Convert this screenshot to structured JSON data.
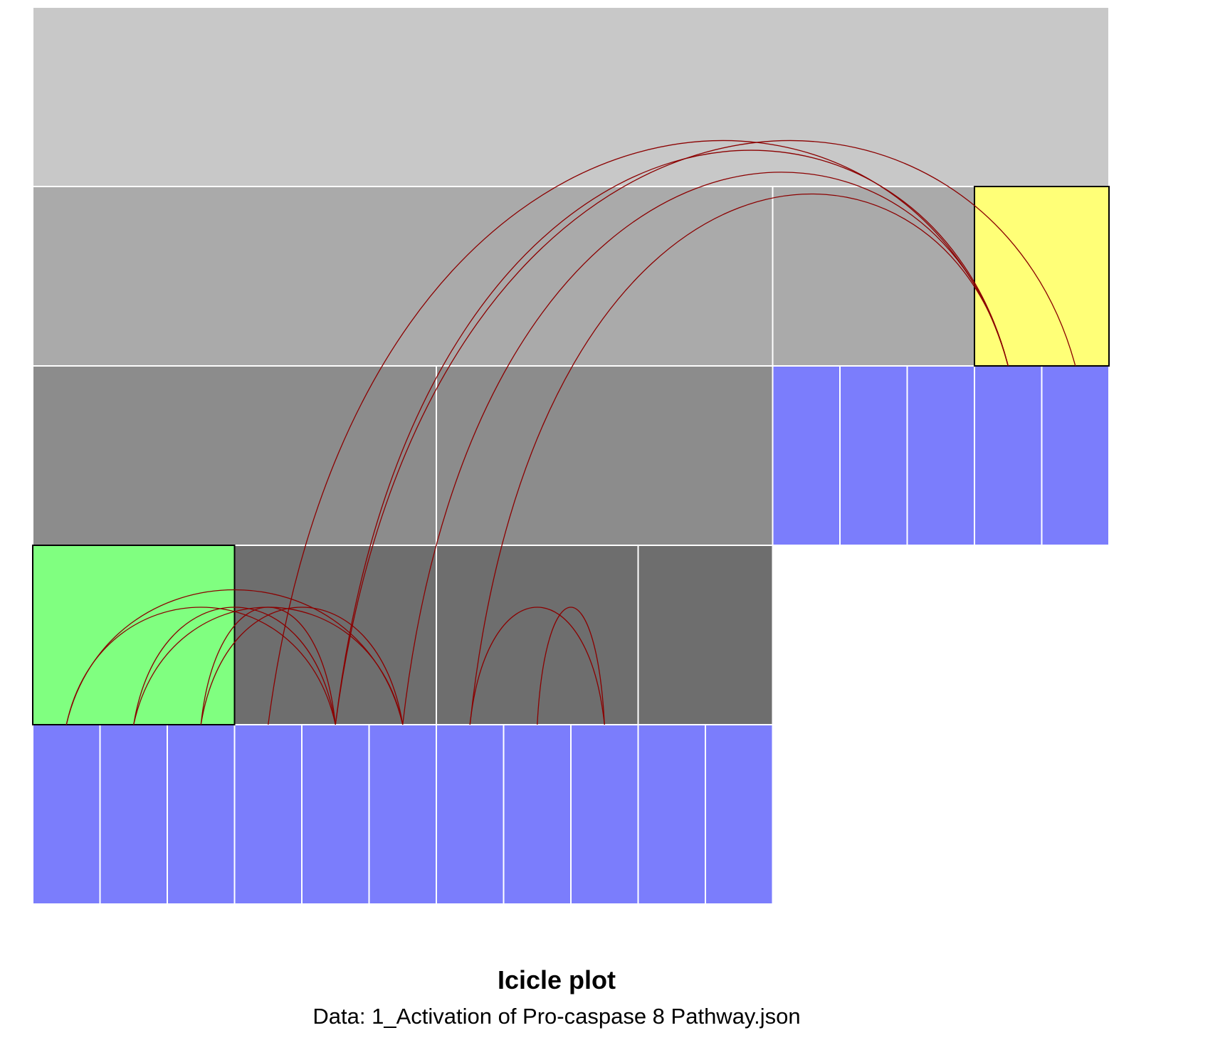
{
  "title": "Icicle plot",
  "subtitle": "Data: 1_Activation of Pro-caspase 8 Pathway.json",
  "colors": {
    "level0": "#c8c8c8",
    "level1": "#aaaaaa",
    "level2": "#8c8c8c",
    "level3": "#6e6e6e",
    "leaf": "#7b7dfc",
    "highlight_source": "#80ff80",
    "highlight_target": "#ffff77",
    "node_border": "#ffffff",
    "highlight_border": "#000000",
    "link": "#8b0000"
  },
  "chart_data": {
    "type": "icicle",
    "unit_count": 16,
    "depth_count": 5,
    "nodes": [
      {
        "id": "root",
        "depth": 0,
        "start": 0,
        "span": 16,
        "fill": "level0"
      },
      {
        "id": "A",
        "depth": 1,
        "start": 0,
        "span": 11,
        "fill": "level1"
      },
      {
        "id": "B",
        "depth": 1,
        "start": 11,
        "span": 3,
        "fill": "level1"
      },
      {
        "id": "C",
        "depth": 1,
        "start": 14,
        "span": 2,
        "fill": "highlight_target",
        "highlighted": true
      },
      {
        "id": "A1",
        "depth": 2,
        "start": 0,
        "span": 6,
        "fill": "level2"
      },
      {
        "id": "A2",
        "depth": 2,
        "start": 6,
        "span": 5,
        "fill": "level2"
      },
      {
        "id": "b1",
        "depth": 2,
        "start": 11,
        "span": 1,
        "fill": "leaf"
      },
      {
        "id": "b2",
        "depth": 2,
        "start": 12,
        "span": 1,
        "fill": "leaf"
      },
      {
        "id": "b3",
        "depth": 2,
        "start": 13,
        "span": 1,
        "fill": "leaf"
      },
      {
        "id": "c1",
        "depth": 2,
        "start": 14,
        "span": 1,
        "fill": "leaf"
      },
      {
        "id": "c2",
        "depth": 2,
        "start": 15,
        "span": 1,
        "fill": "leaf"
      },
      {
        "id": "A1a",
        "depth": 3,
        "start": 0,
        "span": 3,
        "fill": "highlight_source",
        "highlighted": true
      },
      {
        "id": "A1b",
        "depth": 3,
        "start": 3,
        "span": 3,
        "fill": "level3"
      },
      {
        "id": "A2a",
        "depth": 3,
        "start": 6,
        "span": 3,
        "fill": "level3"
      },
      {
        "id": "A2b",
        "depth": 3,
        "start": 9,
        "span": 2,
        "fill": "level3"
      },
      {
        "id": "l0",
        "depth": 4,
        "start": 0,
        "span": 1,
        "fill": "leaf"
      },
      {
        "id": "l1",
        "depth": 4,
        "start": 1,
        "span": 1,
        "fill": "leaf"
      },
      {
        "id": "l2",
        "depth": 4,
        "start": 2,
        "span": 1,
        "fill": "leaf"
      },
      {
        "id": "l3",
        "depth": 4,
        "start": 3,
        "span": 1,
        "fill": "leaf"
      },
      {
        "id": "l4",
        "depth": 4,
        "start": 4,
        "span": 1,
        "fill": "leaf"
      },
      {
        "id": "l5",
        "depth": 4,
        "start": 5,
        "span": 1,
        "fill": "leaf"
      },
      {
        "id": "l6",
        "depth": 4,
        "start": 6,
        "span": 1,
        "fill": "leaf"
      },
      {
        "id": "l7",
        "depth": 4,
        "start": 7,
        "span": 1,
        "fill": "leaf"
      },
      {
        "id": "l8",
        "depth": 4,
        "start": 8,
        "span": 1,
        "fill": "leaf"
      },
      {
        "id": "l9",
        "depth": 4,
        "start": 9,
        "span": 1,
        "fill": "leaf"
      },
      {
        "id": "l10",
        "depth": 4,
        "start": 10,
        "span": 1,
        "fill": "leaf"
      }
    ],
    "links": [
      {
        "source": "l0",
        "target": "l4"
      },
      {
        "source": "l0",
        "target": "l5"
      },
      {
        "source": "l1",
        "target": "l4"
      },
      {
        "source": "l1",
        "target": "l5"
      },
      {
        "source": "l2",
        "target": "l4"
      },
      {
        "source": "l2",
        "target": "l5"
      },
      {
        "source": "l3",
        "target": "c1"
      },
      {
        "source": "l4",
        "target": "c1"
      },
      {
        "source": "l5",
        "target": "c1"
      },
      {
        "source": "l6",
        "target": "l8"
      },
      {
        "source": "l7",
        "target": "l8"
      },
      {
        "source": "l6",
        "target": "c1"
      },
      {
        "source": "l4",
        "target": "c2"
      }
    ]
  }
}
